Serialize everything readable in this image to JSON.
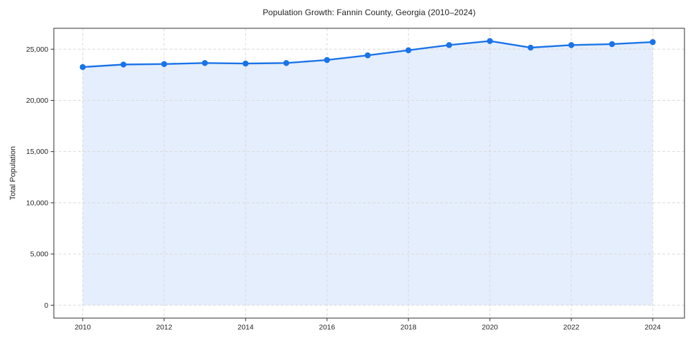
{
  "chart_data": {
    "type": "line",
    "area_fill": true,
    "marker": "circle",
    "title": "Population Growth: Fannin County, Georgia (2010–2024)",
    "xlabel": "",
    "ylabel": "Total Population",
    "x": [
      2010,
      2011,
      2012,
      2013,
      2014,
      2015,
      2016,
      2017,
      2018,
      2019,
      2020,
      2021,
      2022,
      2023,
      2024
    ],
    "series": [
      {
        "name": "Total Population",
        "values": [
          23250,
          23500,
          23550,
          23650,
          23600,
          23650,
          23950,
          24400,
          24900,
          25400,
          25800,
          25150,
          25400,
          25500,
          25700
        ]
      }
    ],
    "xticks": [
      2010,
      2012,
      2014,
      2016,
      2018,
      2020,
      2022,
      2024
    ],
    "xtick_labels": [
      "2010",
      "2012",
      "2014",
      "2016",
      "2018",
      "2020",
      "2022",
      "2024"
    ],
    "yticks": [
      0,
      5000,
      10000,
      15000,
      20000,
      25000
    ],
    "ytick_labels": [
      "0",
      "5,000",
      "10,000",
      "15,000",
      "20,000",
      "25,000"
    ],
    "xlim": [
      2009.29,
      2024.78
    ],
    "ylim": [
      -1260,
      27040
    ],
    "grid": true,
    "grid_style": "dashed",
    "legend": false,
    "colors": {
      "line": "#1a73e8",
      "marker": "#1a73e8",
      "fill": "#e5eefc",
      "grid": "#d9d9d9",
      "spine": "#2b2b2b",
      "text": "#1f1f1f",
      "background": "#ffffff"
    }
  }
}
